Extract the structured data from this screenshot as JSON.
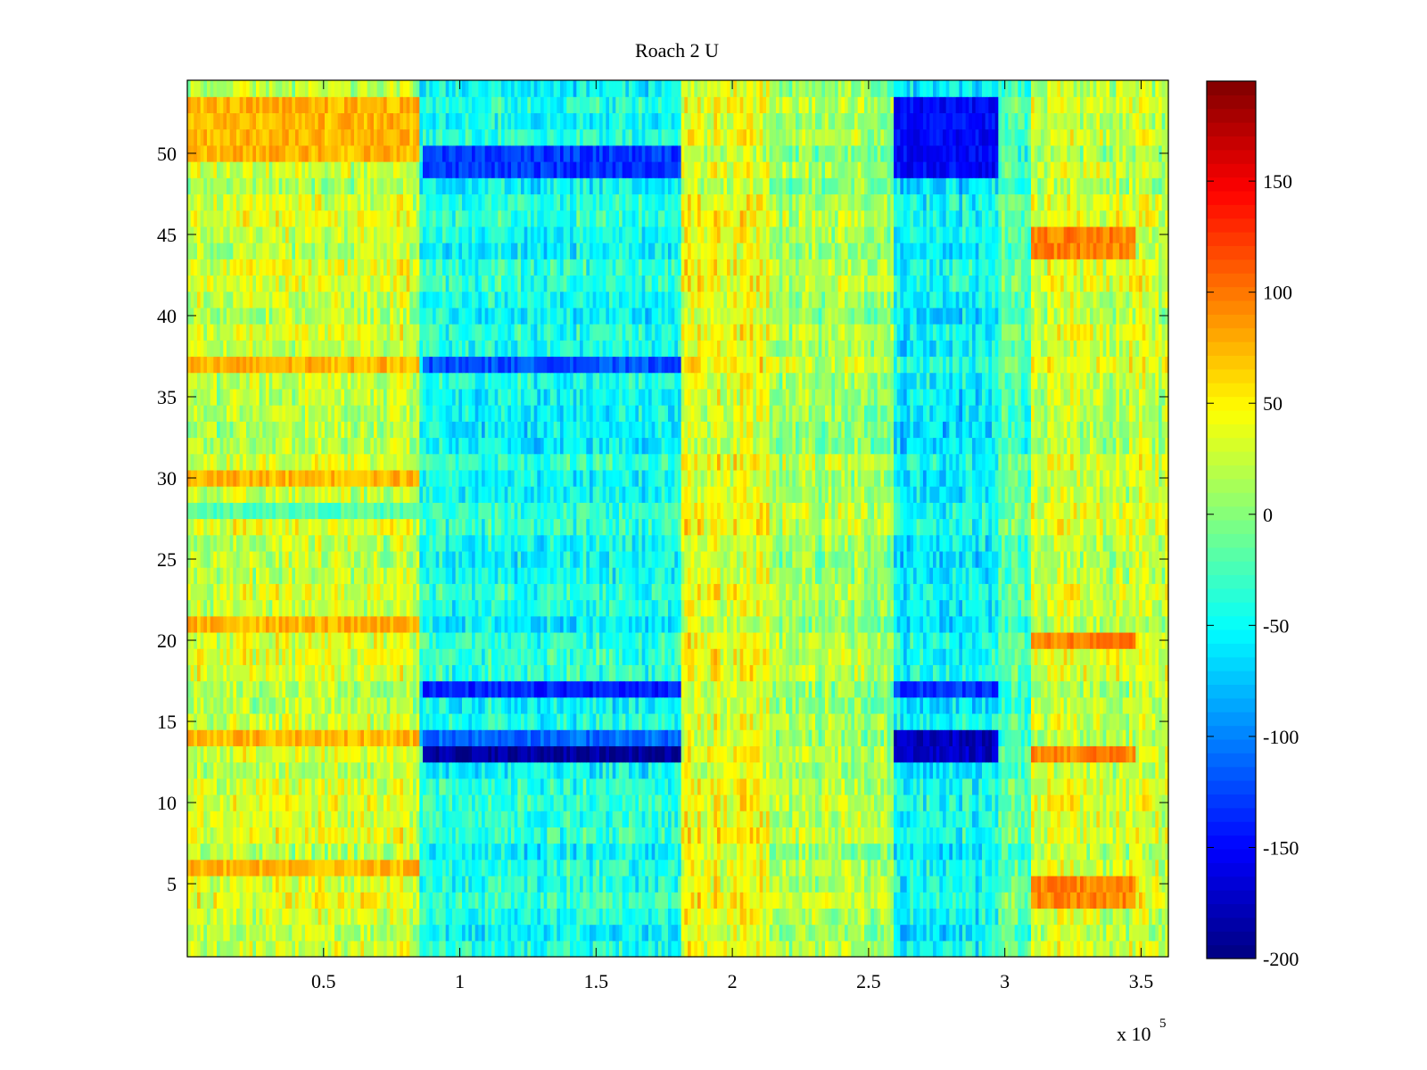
{
  "chart_data": {
    "type": "heatmap",
    "title": "Roach 2 U",
    "xlabel": "",
    "ylabel": "",
    "x_multiplier_label": "x 10",
    "x_multiplier_exponent": "5",
    "xlim": [
      0.5,
      360000
    ],
    "ylim": [
      0.5,
      54.5
    ],
    "x_ticks": [
      0.5,
      1,
      1.5,
      2,
      2.5,
      3,
      3.5
    ],
    "x_tick_labels": [
      "0.5",
      "1",
      "1.5",
      "2",
      "2.5",
      "3",
      "3.5"
    ],
    "y_ticks": [
      5,
      10,
      15,
      20,
      25,
      30,
      35,
      40,
      45,
      50
    ],
    "y_tick_labels": [
      "5",
      "10",
      "15",
      "20",
      "25",
      "30",
      "35",
      "40",
      "45",
      "50"
    ],
    "n_rows": 54,
    "colorbar": {
      "colormap": "jet",
      "clim": [
        -200,
        195
      ],
      "ticks": [
        150,
        100,
        50,
        0,
        -50,
        -100,
        -150,
        -200
      ],
      "tick_labels": [
        "150",
        "100",
        "50",
        "0",
        "-50",
        "-100",
        "-150",
        "-200"
      ]
    },
    "segments": [
      {
        "x_range": [
          0,
          85000
        ],
        "base_value": 25
      },
      {
        "x_range": [
          85000,
          181000
        ],
        "base_value": -45
      },
      {
        "x_range": [
          181000,
          214000
        ],
        "base_value": 35
      },
      {
        "x_range": [
          214000,
          259000
        ],
        "base_value": 10
      },
      {
        "x_range": [
          259000,
          298000
        ],
        "base_value": -55
      },
      {
        "x_range": [
          298000,
          310000
        ],
        "base_value": -20
      },
      {
        "x_range": [
          310000,
          360000
        ],
        "base_value": 25
      }
    ],
    "strong_bands": [
      {
        "x_range": [
          86000,
          181000
        ],
        "rows": [
          13
        ],
        "value": -190
      },
      {
        "x_range": [
          86000,
          181000
        ],
        "rows": [
          14
        ],
        "value": -110
      },
      {
        "x_range": [
          86000,
          181000
        ],
        "rows": [
          17
        ],
        "value": -140
      },
      {
        "x_range": [
          86000,
          181000
        ],
        "rows": [
          37
        ],
        "value": -120
      },
      {
        "x_range": [
          86000,
          181000
        ],
        "rows": [
          49,
          50
        ],
        "value": -130
      },
      {
        "x_range": [
          259000,
          298000
        ],
        "rows": [
          13,
          14
        ],
        "value": -175
      },
      {
        "x_range": [
          259000,
          298000
        ],
        "rows": [
          17
        ],
        "value": -130
      },
      {
        "x_range": [
          259000,
          298000
        ],
        "rows": [
          49,
          50,
          51,
          52,
          53
        ],
        "value": -150
      },
      {
        "x_range": [
          0,
          85000
        ],
        "rows": [
          6,
          14,
          21,
          30,
          37,
          50,
          51,
          52,
          53
        ],
        "value": 75
      },
      {
        "x_range": [
          310000,
          348000
        ],
        "rows": [
          4,
          5,
          13,
          20,
          44,
          45
        ],
        "value": 95
      },
      {
        "x_range": [
          0,
          85000
        ],
        "rows": [
          28
        ],
        "value": -20
      }
    ]
  }
}
